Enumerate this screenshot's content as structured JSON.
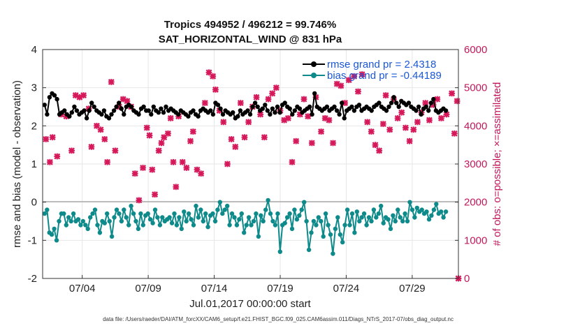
{
  "chart_data": {
    "type": "line",
    "title_line1": "Tropics 494952 / 496212 = 99.746%",
    "title_line2": "SAT_HORIZONTAL_WIND @ 831 hPa",
    "ylabel_left": "rmse and bias (model - observation)",
    "ylabel_right": "# of obs: o=possible; ×=assimilated",
    "xlabel": "Jul.01,2017 00:00:00 start",
    "footer": "data file: /Users/raeder/DAI/ATM_forcXX/CAM6_setup/f.e21.FHIST_BGC.f09_025.CAM6assim.011/Diags_NTrS_2017-07/obs_diag_output.nc",
    "x_range_days": [
      1,
      32.5
    ],
    "ylim_left": [
      -2,
      4
    ],
    "ylim_right": [
      0,
      6000
    ],
    "yticks_left": [
      "-2",
      "-1",
      "0",
      "1",
      "2",
      "3",
      "4"
    ],
    "yticks_right": [
      "0",
      "1000",
      "2000",
      "3000",
      "4000",
      "5000",
      "6000"
    ],
    "xticks": [
      {
        "day": 4,
        "label": "07/04"
      },
      {
        "day": 9,
        "label": "07/09"
      },
      {
        "day": 14,
        "label": "07/14"
      },
      {
        "day": 19,
        "label": "07/19"
      },
      {
        "day": 24,
        "label": "07/24"
      },
      {
        "day": 29,
        "label": "07/29"
      }
    ],
    "series": [
      {
        "name": "rmse",
        "legend": "rmse grand pr = 2.4318",
        "color": "#000000",
        "axis": "left",
        "values": [
          2.55,
          2.3,
          2.75,
          2.85,
          2.8,
          2.7,
          2.3,
          2.35,
          2.4,
          2.3,
          2.25,
          2.35,
          2.5,
          2.4,
          2.3,
          2.35,
          2.4,
          2.2,
          2.4,
          2.6,
          2.5,
          2.4,
          2.35,
          2.3,
          2.4,
          2.25,
          2.2,
          2.3,
          2.4,
          2.5,
          2.6,
          2.45,
          2.3,
          2.5,
          2.55,
          2.5,
          2.4,
          2.35,
          2.3,
          2.45,
          2.5,
          2.4,
          2.4,
          2.3,
          2.5,
          2.4,
          2.35,
          2.45,
          2.35,
          2.5,
          2.4,
          2.45,
          2.4,
          2.35,
          2.3,
          2.4,
          2.35,
          2.3,
          2.25,
          2.35,
          2.4,
          2.3,
          2.25,
          2.4,
          2.45,
          2.4,
          2.35,
          2.4,
          2.3,
          2.6,
          2.55,
          2.45,
          2.3,
          2.4,
          2.35,
          2.3,
          2.35,
          2.2,
          2.25,
          2.4,
          2.3,
          2.35,
          2.4,
          2.3,
          2.5,
          2.6,
          2.5,
          2.4,
          2.45,
          2.55,
          2.4,
          2.3,
          2.45,
          2.35,
          2.5,
          2.35,
          2.55,
          2.6,
          2.5,
          2.45,
          2.3,
          2.4,
          2.5,
          2.45,
          2.35,
          2.4,
          2.45,
          2.5,
          2.3,
          2.85,
          2.5,
          2.45,
          2.4,
          2.45,
          2.5,
          2.4,
          2.45,
          2.5,
          2.4,
          2.3,
          2.6,
          2.2,
          2.4,
          2.45,
          2.5,
          2.4,
          2.5,
          2.55,
          2.4,
          2.45,
          2.5,
          2.45,
          2.4,
          2.5,
          2.55,
          2.6,
          2.5,
          2.45,
          2.4,
          2.5,
          2.6,
          2.75,
          2.6,
          2.5,
          2.65,
          2.6,
          2.55,
          2.6,
          2.5,
          2.45,
          2.4,
          2.5,
          2.3,
          2.45,
          2.5,
          2.4,
          2.6,
          2.7,
          2.4,
          2.35,
          2.4,
          2.45,
          2.4
        ]
      },
      {
        "name": "bias",
        "legend": "bias grand pr = -0.44189",
        "color": "#0f8a8a",
        "axis": "left",
        "values": [
          -0.3,
          -0.2,
          -0.8,
          -0.85,
          -0.7,
          -1.0,
          -0.5,
          -0.3,
          -0.3,
          -0.6,
          -0.4,
          -0.5,
          -0.3,
          -0.5,
          -0.45,
          -0.6,
          -0.5,
          -0.6,
          -0.7,
          -0.4,
          -0.3,
          -0.2,
          -0.6,
          -0.8,
          -0.5,
          -0.55,
          -0.3,
          -0.5,
          -0.9,
          -0.4,
          -0.2,
          -0.3,
          -0.5,
          -0.2,
          -0.4,
          -0.6,
          -0.1,
          -0.3,
          -0.5,
          -0.7,
          -0.3,
          -0.6,
          -0.35,
          -0.3,
          -0.45,
          -0.55,
          -0.2,
          -0.4,
          -0.6,
          -0.4,
          -0.5,
          -0.45,
          -0.4,
          -0.55,
          -0.3,
          -0.6,
          -0.4,
          -0.7,
          -0.25,
          -0.5,
          -0.3,
          -0.45,
          -0.6,
          -0.1,
          -0.4,
          -0.2,
          -0.5,
          -0.3,
          -0.65,
          -0.35,
          -0.3,
          -0.5,
          -0.2,
          0.0,
          -0.3,
          -0.2,
          -0.1,
          -0.6,
          -0.3,
          -0.4,
          -0.6,
          -0.45,
          -0.3,
          -0.8,
          -0.6,
          -0.4,
          -0.6,
          -0.5,
          -0.3,
          -0.9,
          -0.35,
          -0.5,
          -0.2,
          0.05,
          -0.3,
          -0.5,
          -0.6,
          -0.3,
          -1.3,
          -0.6,
          -0.55,
          -0.4,
          -0.3,
          -0.7,
          -0.2,
          -0.45,
          -0.35,
          -0.2,
          0.0,
          -0.5,
          -1.25,
          -0.8,
          -0.5,
          -0.6,
          -0.4,
          -0.5,
          -0.9,
          -0.3,
          -0.6,
          -0.85,
          -1.35,
          -0.7,
          -0.4,
          -0.85,
          -1.05,
          -0.6,
          -0.2,
          -0.6,
          -0.3,
          -0.8,
          -0.25,
          -0.5,
          -0.4,
          -0.3,
          -0.6,
          -0.4,
          -0.5,
          -0.2,
          -0.4,
          -0.3,
          -0.1,
          -0.55,
          -0.4,
          -0.45,
          -0.7,
          -0.35,
          -0.5,
          -0.2,
          -0.4,
          -0.5,
          -0.3,
          -0.5,
          0.0,
          -0.2,
          -0.4,
          -0.15,
          -0.25,
          -0.2,
          -0.3,
          -0.25,
          -0.45,
          -0.35,
          -0.2,
          -0.05,
          -0.3,
          -0.25,
          -0.4,
          -0.25
        ]
      }
    ],
    "assimilated": {
      "name": "assimilated (×)",
      "color": "#d6195b",
      "axis": "right",
      "points": [
        [
          1.25,
          3650
        ],
        [
          1.55,
          3050
        ],
        [
          1.75,
          3700
        ],
        [
          2.1,
          3200
        ],
        [
          2.4,
          4300
        ],
        [
          2.8,
          4250
        ],
        [
          3.2,
          3350
        ],
        [
          3.5,
          4800
        ],
        [
          3.8,
          4750
        ],
        [
          4.1,
          4800
        ],
        [
          4.5,
          4450
        ],
        [
          4.7,
          3450
        ],
        [
          5.1,
          4000
        ],
        [
          5.4,
          3900
        ],
        [
          5.7,
          3650
        ],
        [
          5.9,
          3050
        ],
        [
          6.2,
          5150
        ],
        [
          6.5,
          3350
        ],
        [
          6.8,
          4500
        ],
        [
          7.1,
          4700
        ],
        [
          7.4,
          4650
        ],
        [
          7.7,
          4500
        ],
        [
          8.0,
          2750
        ],
        [
          8.3,
          2050
        ],
        [
          8.6,
          2900
        ],
        [
          8.9,
          3950
        ],
        [
          9.1,
          3750
        ],
        [
          9.3,
          2850
        ],
        [
          9.5,
          2200
        ],
        [
          9.8,
          3350
        ],
        [
          10.0,
          3550
        ],
        [
          10.2,
          3700
        ],
        [
          10.5,
          3800
        ],
        [
          10.7,
          4200
        ],
        [
          10.9,
          3050
        ],
        [
          11.1,
          2400
        ],
        [
          11.3,
          4250
        ],
        [
          11.6,
          3050
        ],
        [
          11.9,
          2900
        ],
        [
          12.2,
          3600
        ],
        [
          12.4,
          3850
        ],
        [
          12.7,
          2850
        ],
        [
          13.0,
          2750
        ],
        [
          13.3,
          4600
        ],
        [
          13.6,
          5400
        ],
        [
          13.9,
          5300
        ],
        [
          14.1,
          4950
        ],
        [
          14.4,
          4400
        ],
        [
          14.7,
          4100
        ],
        [
          15.0,
          3000
        ],
        [
          15.3,
          3650
        ],
        [
          15.6,
          3450
        ],
        [
          16.0,
          4600
        ],
        [
          16.3,
          3700
        ],
        [
          16.6,
          4100
        ],
        [
          16.9,
          4500
        ],
        [
          17.2,
          4750
        ],
        [
          17.5,
          4300
        ],
        [
          17.8,
          3700
        ],
        [
          18.1,
          4700
        ],
        [
          18.4,
          4850
        ],
        [
          18.7,
          5000
        ],
        [
          19.0,
          4400
        ],
        [
          19.3,
          4150
        ],
        [
          19.6,
          4200
        ],
        [
          19.9,
          3050
        ],
        [
          20.2,
          3600
        ],
        [
          20.5,
          4300
        ],
        [
          20.8,
          4700
        ],
        [
          21.1,
          4250
        ],
        [
          21.4,
          3550
        ],
        [
          21.7,
          4750
        ],
        [
          22.1,
          3850
        ],
        [
          22.4,
          4200
        ],
        [
          22.7,
          4150
        ],
        [
          23.0,
          3550
        ],
        [
          23.3,
          5100
        ],
        [
          23.6,
          5050
        ],
        [
          23.9,
          4600
        ],
        [
          24.2,
          5200
        ],
        [
          24.6,
          5300
        ],
        [
          24.9,
          4900
        ],
        [
          25.2,
          5350
        ],
        [
          25.6,
          4100
        ],
        [
          25.9,
          3850
        ],
        [
          26.2,
          3500
        ],
        [
          26.5,
          3350
        ],
        [
          26.8,
          4050
        ],
        [
          27.0,
          4800
        ],
        [
          27.3,
          3900
        ],
        [
          27.6,
          4700
        ],
        [
          27.9,
          4200
        ],
        [
          28.2,
          4350
        ],
        [
          28.5,
          3950
        ],
        [
          28.8,
          3600
        ],
        [
          29.1,
          3900
        ],
        [
          29.4,
          4100
        ],
        [
          29.7,
          4350
        ],
        [
          30.0,
          4600
        ],
        [
          30.3,
          4150
        ],
        [
          30.6,
          4550
        ],
        [
          30.9,
          4700
        ],
        [
          31.2,
          4200
        ],
        [
          31.6,
          4300
        ],
        [
          32.0,
          4850
        ],
        [
          32.2,
          3800
        ],
        [
          32.4,
          4650
        ],
        [
          32.5,
          0
        ]
      ]
    }
  }
}
